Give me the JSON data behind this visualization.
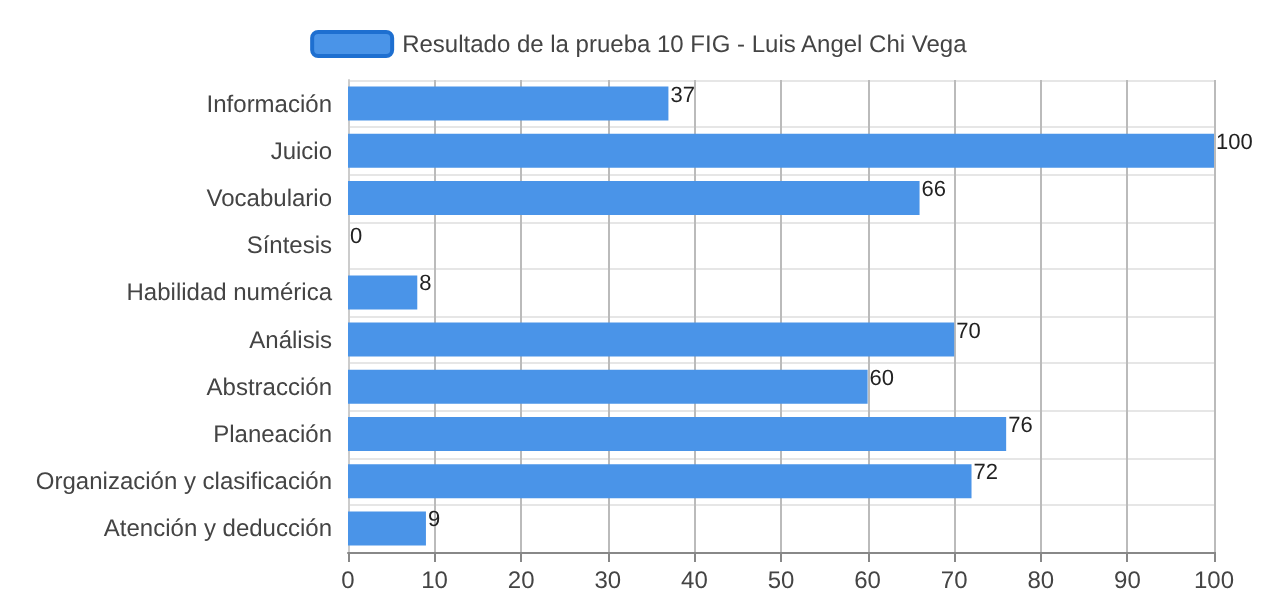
{
  "chart_data": {
    "type": "bar",
    "orientation": "horizontal",
    "categories": [
      "Información",
      "Juicio",
      "Vocabulario",
      "Síntesis",
      "Habilidad numérica",
      "Análisis",
      "Abstracción",
      "Planeación",
      "Organización y clasificación",
      "Atención y deducción"
    ],
    "series": [
      {
        "name": "Resultado de la prueba 10 FIG - Luis Angel Chi Vega",
        "color": "#4a94e8",
        "values": [
          37,
          100,
          66,
          0,
          8,
          70,
          60,
          76,
          72,
          9
        ]
      }
    ],
    "xlim": [
      0,
      100
    ],
    "xticks": [
      0,
      10,
      20,
      30,
      40,
      50,
      60,
      70,
      80,
      90,
      100
    ],
    "data_labels": true,
    "grid": true,
    "legend": "top"
  }
}
